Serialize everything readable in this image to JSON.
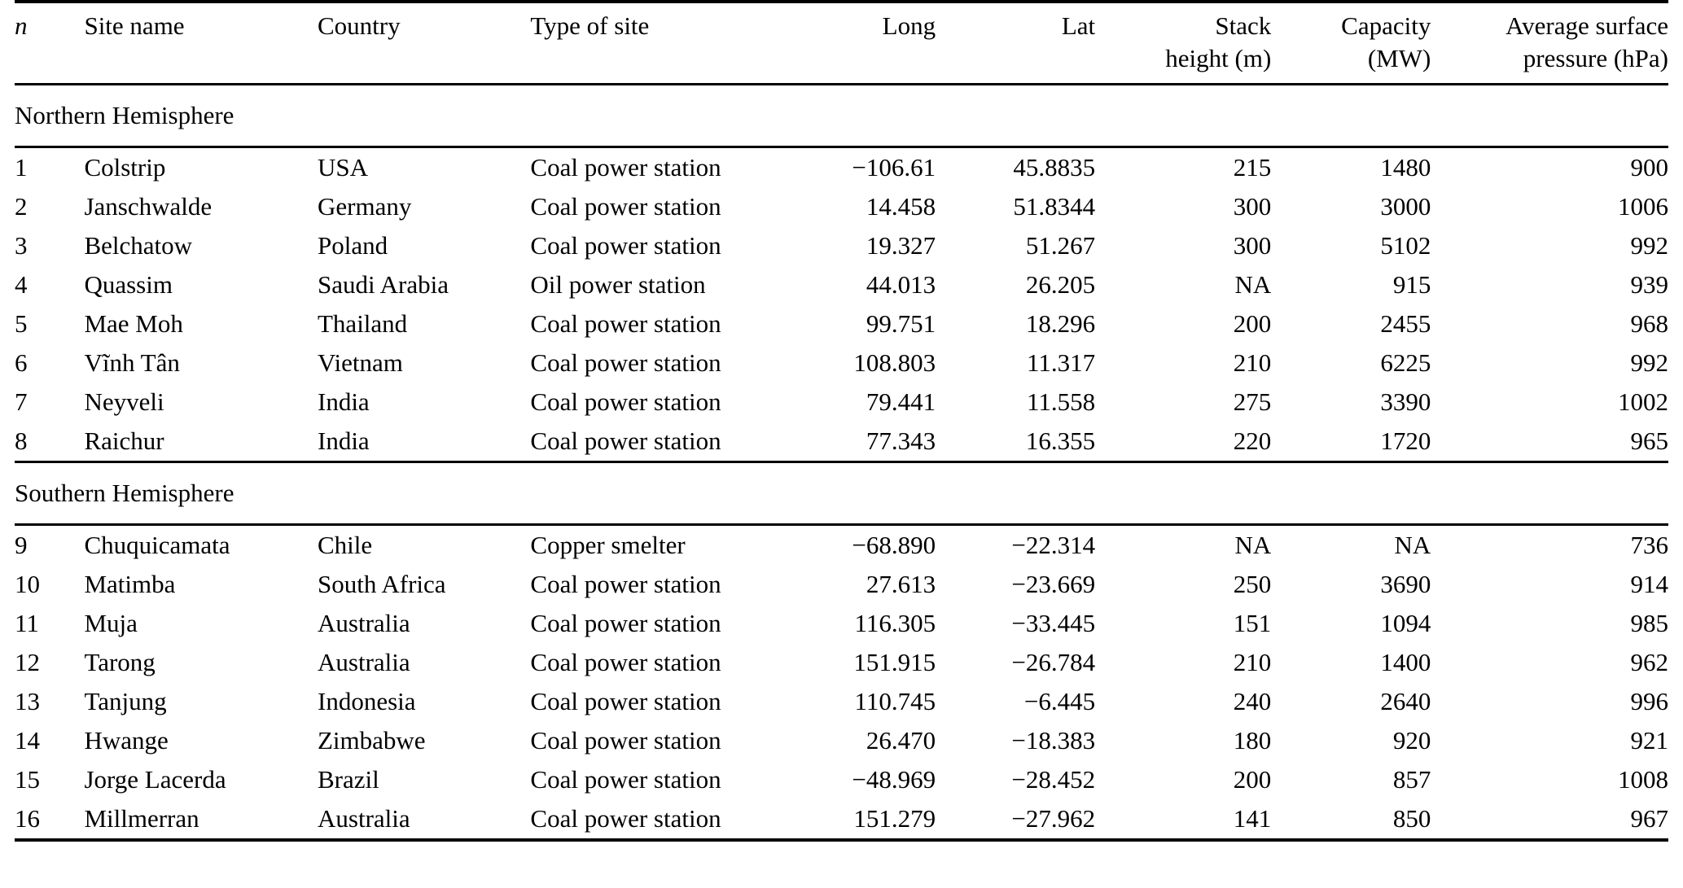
{
  "table": {
    "columns": [
      {
        "line1": "n",
        "line2": "",
        "align": "left"
      },
      {
        "line1": "Site name",
        "line2": "",
        "align": "left"
      },
      {
        "line1": "Country",
        "line2": "",
        "align": "left"
      },
      {
        "line1": "Type of site",
        "line2": "",
        "align": "left"
      },
      {
        "line1": "Long",
        "line2": "",
        "align": "right"
      },
      {
        "line1": "Lat",
        "line2": "",
        "align": "right"
      },
      {
        "line1": "Stack",
        "line2": "height (m)",
        "align": "right"
      },
      {
        "line1": "Capacity",
        "line2": "(MW)",
        "align": "right"
      },
      {
        "line1": "Average surface",
        "line2": "pressure (hPa)",
        "align": "right"
      }
    ],
    "sections": [
      {
        "title": "Northern Hemisphere",
        "rows": [
          [
            "1",
            "Colstrip",
            "USA",
            "Coal power station",
            "−106.61",
            "45.8835",
            "215",
            "1480",
            "900"
          ],
          [
            "2",
            "Janschwalde",
            "Germany",
            "Coal power station",
            "14.458",
            "51.8344",
            "300",
            "3000",
            "1006"
          ],
          [
            "3",
            "Belchatow",
            "Poland",
            "Coal power station",
            "19.327",
            "51.267",
            "300",
            "5102",
            "992"
          ],
          [
            "4",
            "Quassim",
            "Saudi Arabia",
            "Oil power station",
            "44.013",
            "26.205",
            "NA",
            "915",
            "939"
          ],
          [
            "5",
            "Mae Moh",
            "Thailand",
            "Coal power station",
            "99.751",
            "18.296",
            "200",
            "2455",
            "968"
          ],
          [
            "6",
            "Vĩnh Tân",
            "Vietnam",
            "Coal power station",
            "108.803",
            "11.317",
            "210",
            "6225",
            "992"
          ],
          [
            "7",
            "Neyveli",
            "India",
            "Coal power station",
            "79.441",
            "11.558",
            "275",
            "3390",
            "1002"
          ],
          [
            "8",
            "Raichur",
            "India",
            "Coal power station",
            "77.343",
            "16.355",
            "220",
            "1720",
            "965"
          ]
        ]
      },
      {
        "title": "Southern Hemisphere",
        "rows": [
          [
            "9",
            "Chuquicamata",
            "Chile",
            "Copper smelter",
            "−68.890",
            "−22.314",
            "NA",
            "NA",
            "736"
          ],
          [
            "10",
            "Matimba",
            "South Africa",
            "Coal power station",
            "27.613",
            "−23.669",
            "250",
            "3690",
            "914"
          ],
          [
            "11",
            "Muja",
            "Australia",
            "Coal power station",
            "116.305",
            "−33.445",
            "151",
            "1094",
            "985"
          ],
          [
            "12",
            "Tarong",
            "Australia",
            "Coal power station",
            "151.915",
            "−26.784",
            "210",
            "1400",
            "962"
          ],
          [
            "13",
            "Tanjung",
            "Indonesia",
            "Coal power station",
            "110.745",
            "−6.445",
            "240",
            "2640",
            "996"
          ],
          [
            "14",
            "Hwange",
            "Zimbabwe",
            "Coal power station",
            "26.470",
            "−18.383",
            "180",
            "920",
            "921"
          ],
          [
            "15",
            "Jorge Lacerda",
            "Brazil",
            "Coal power station",
            "−48.969",
            "−28.452",
            "200",
            "857",
            "1008"
          ],
          [
            "16",
            "Millmerran",
            "Australia",
            "Coal power station",
            "151.279",
            "−27.962",
            "141",
            "850",
            "967"
          ]
        ]
      }
    ]
  }
}
